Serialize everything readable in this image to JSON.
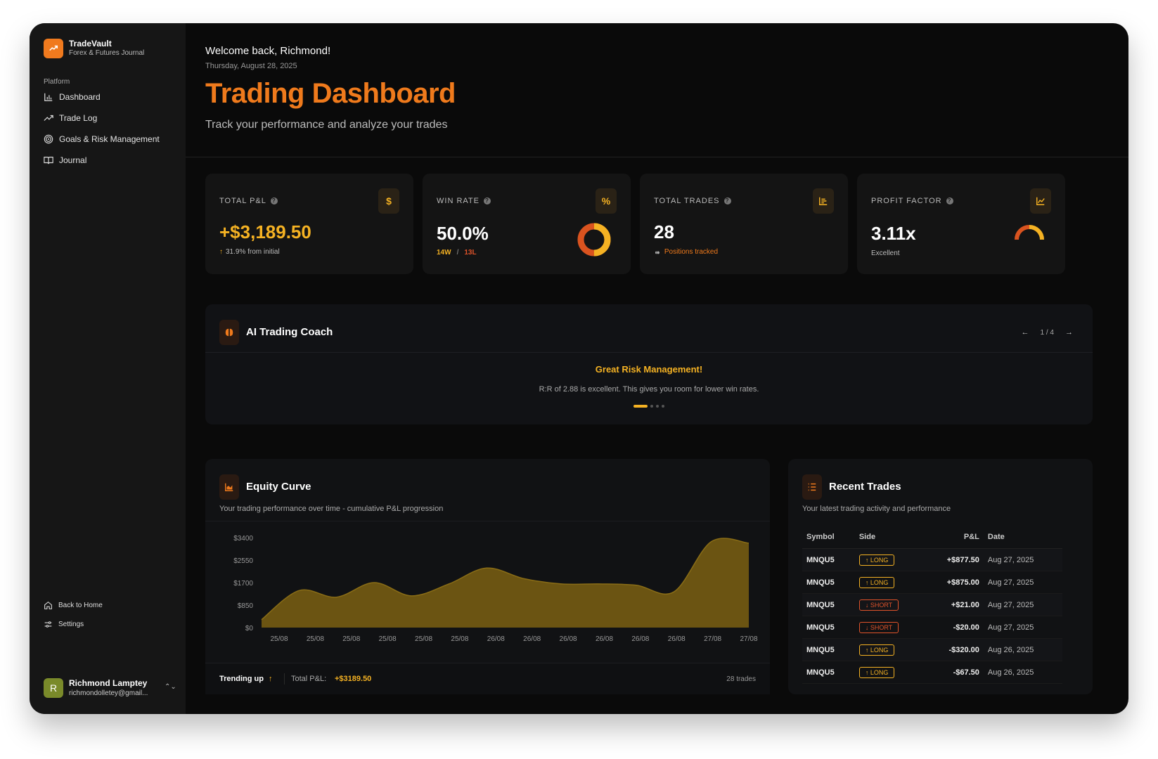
{
  "colors": {
    "accent": "#ef7a1c",
    "gold": "#f5b223",
    "negative": "#e0532a",
    "background": "#0a0a0a",
    "sidebar": "#161616"
  },
  "brand": {
    "title": "TradeVault",
    "subtitle": "Forex & Futures Journal",
    "icon": "trending-up-icon"
  },
  "sidebar": {
    "group_label": "Platform",
    "items": [
      {
        "label": "Dashboard",
        "icon": "bar-chart-icon"
      },
      {
        "label": "Trade Log",
        "icon": "trending-up-icon"
      },
      {
        "label": "Goals & Risk Management",
        "icon": "target-icon"
      },
      {
        "label": "Journal",
        "icon": "book-icon"
      }
    ],
    "bottom": [
      {
        "label": "Back to Home",
        "icon": "home-icon"
      },
      {
        "label": "Settings",
        "icon": "settings-icon"
      }
    ],
    "user": {
      "initial": "R",
      "name": "Richmond Lamptey",
      "email": "richmondolletey@gmail..."
    }
  },
  "header": {
    "welcome": "Welcome back, Richmond!",
    "date": "Thursday, August 28, 2025",
    "title": "Trading Dashboard",
    "subtitle": "Track your performance and analyze your trades"
  },
  "stats": [
    {
      "label": "TOTAL P&L",
      "icon": "$",
      "value": "+$3,189.50",
      "note": "31.9% from initial"
    },
    {
      "label": "WIN RATE",
      "icon": "%",
      "value": "50.0%",
      "wins": "14W",
      "sep": "/",
      "losses": "13L",
      "win_fraction": 0.5
    },
    {
      "label": "TOTAL TRADES",
      "value": "28",
      "note": "Positions tracked"
    },
    {
      "label": "PROFIT FACTOR",
      "value": "3.11x",
      "note": "Excellent"
    }
  ],
  "coach": {
    "title": "AI Trading Coach",
    "page": "1 / 4",
    "headline": "Great Risk Management!",
    "text": "R:R of 2.88 is excellent. This gives you room for lower win rates."
  },
  "equity": {
    "title": "Equity Curve",
    "subtitle": "Your trading performance over time - cumulative P&L progression",
    "trend_label": "Trending up",
    "total_label": "Total P&L:",
    "total_value": "+$3189.50",
    "trades_count": "28 trades"
  },
  "chart_data": {
    "type": "area",
    "title": "Equity Curve",
    "xlabel": "",
    "ylabel": "",
    "ylim": [
      0,
      3400
    ],
    "yticks": [
      "$3400",
      "$2550",
      "$1700",
      "$850",
      "$0"
    ],
    "x": [
      "25/08",
      "25/08",
      "25/08",
      "25/08",
      "25/08",
      "25/08",
      "26/08",
      "26/08",
      "26/08",
      "26/08",
      "26/08",
      "26/08",
      "27/08",
      "27/08"
    ],
    "values": [
      300,
      1400,
      1150,
      1700,
      1200,
      1650,
      2250,
      1850,
      1650,
      1650,
      1600,
      1350,
      3250,
      3190
    ],
    "grid": false,
    "color": "#6b5412"
  },
  "trades": {
    "title": "Recent Trades",
    "subtitle": "Your latest trading activity and performance",
    "columns": [
      "Symbol",
      "Side",
      "P&L",
      "Date"
    ],
    "rows": [
      {
        "symbol": "MNQU5",
        "side": "↑ LONG",
        "type": "long",
        "pnl": "+$877.50",
        "pos": true,
        "date": "Aug 27, 2025"
      },
      {
        "symbol": "MNQU5",
        "side": "↑ LONG",
        "type": "long",
        "pnl": "+$875.00",
        "pos": true,
        "date": "Aug 27, 2025"
      },
      {
        "symbol": "MNQU5",
        "side": "↓ SHORT",
        "type": "short",
        "pnl": "+$21.00",
        "pos": true,
        "date": "Aug 27, 2025"
      },
      {
        "symbol": "MNQU5",
        "side": "↓ SHORT",
        "type": "short",
        "pnl": "-$20.00",
        "pos": false,
        "date": "Aug 27, 2025"
      },
      {
        "symbol": "MNQU5",
        "side": "↑ LONG",
        "type": "long",
        "pnl": "-$320.00",
        "pos": false,
        "date": "Aug 26, 2025"
      },
      {
        "symbol": "MNQU5",
        "side": "↑ LONG",
        "type": "long",
        "pnl": "-$67.50",
        "pos": false,
        "date": "Aug 26, 2025"
      }
    ]
  }
}
